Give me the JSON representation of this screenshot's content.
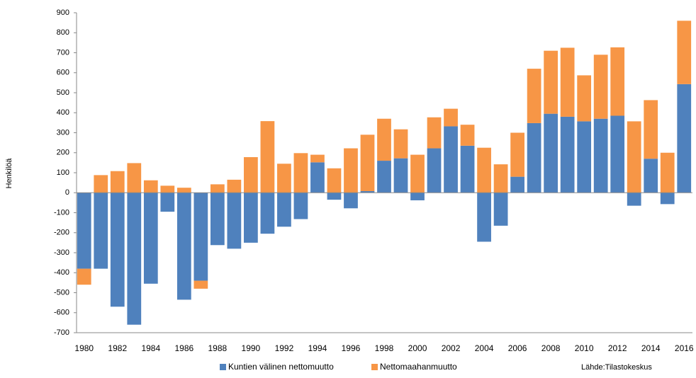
{
  "chart_data": {
    "type": "stacked_bar",
    "y_label": "Henkilöä",
    "source": "Lähde:Tilastokeskus",
    "categories": [
      "1980",
      null,
      "1982",
      null,
      "1984",
      null,
      "1986",
      null,
      "1988",
      null,
      "1990",
      null,
      "1992",
      null,
      "1994",
      null,
      "1996",
      null,
      "1998",
      null,
      "2000",
      null,
      "2002",
      null,
      "2004",
      null,
      "2006",
      null,
      "2008",
      null,
      "2010",
      null,
      "2012",
      null,
      "2014",
      null,
      "2016"
    ],
    "series": [
      {
        "name": "Kuntien välinen nettomuutto",
        "color": "#4f81bd",
        "values": [
          -380,
          -380,
          -570,
          -660,
          -455,
          -95,
          -535,
          -440,
          -262,
          -280,
          -250,
          -205,
          -170,
          -132,
          152,
          -35,
          -78,
          8,
          160,
          172,
          -38,
          222,
          332,
          235,
          -245,
          -165,
          80,
          348,
          395,
          380,
          357,
          370,
          385,
          -65,
          170,
          -57,
          543
        ]
      },
      {
        "name": "Nettomaahanmuutto",
        "color": "#f79646",
        "values": [
          -80,
          88,
          108,
          148,
          62,
          35,
          25,
          -40,
          42,
          65,
          178,
          358,
          145,
          198,
          38,
          122,
          222,
          282,
          210,
          145,
          190,
          155,
          88,
          105,
          225,
          142,
          220,
          272,
          315,
          345,
          230,
          320,
          342,
          357,
          293,
          200,
          317
        ]
      }
    ],
    "ylim": [
      -700,
      900
    ],
    "yticks": [
      -700,
      -600,
      -500,
      -400,
      -300,
      -200,
      -100,
      0,
      100,
      200,
      300,
      400,
      500,
      600,
      700,
      800,
      900
    ],
    "legend": "bottom"
  }
}
